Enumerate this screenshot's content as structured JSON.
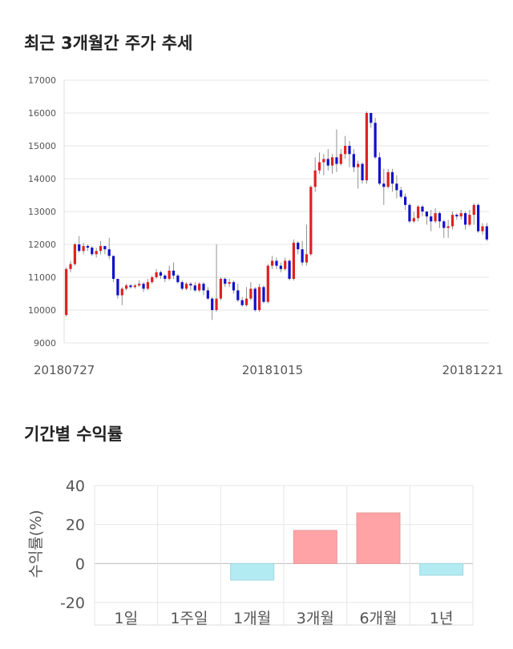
{
  "sections": {
    "price_title": "최근 3개월간 주가 추세",
    "returns_title": "기간별 수익률"
  },
  "colors": {
    "up": "#e02020",
    "down": "#1010cc",
    "positive_bar": "#ffa3a6",
    "negative_bar": "#b2ebf2",
    "grid": "#e6e6e6"
  },
  "chart_data": [
    {
      "type": "candlestick",
      "title": "최근 3개월간 주가 추세",
      "ylim": [
        9000,
        17000
      ],
      "y_ticks": [
        "9000",
        "10000",
        "11000",
        "12000",
        "13000",
        "14000",
        "15000",
        "16000",
        "17000"
      ],
      "x_labels": [
        "20180727",
        "20181015",
        "20181221"
      ],
      "grid": "horizontal",
      "series": [
        [
          9850,
          11250,
          11300,
          9800
        ],
        [
          11250,
          11400,
          11500,
          11150
        ],
        [
          11400,
          12000,
          12050,
          11350
        ],
        [
          12000,
          11800,
          12250,
          11750
        ],
        [
          11800,
          11950,
          12050,
          11700
        ],
        [
          11950,
          11900,
          12000,
          11800
        ],
        [
          11900,
          11700,
          11950,
          11650
        ],
        [
          11700,
          11800,
          11900,
          11600
        ],
        [
          11800,
          11950,
          12100,
          11700
        ],
        [
          11950,
          11850,
          11950,
          11700
        ],
        [
          11850,
          11650,
          12200,
          11550
        ],
        [
          11650,
          10950,
          11450,
          10850
        ],
        [
          10950,
          10450,
          10950,
          10350
        ],
        [
          10450,
          10650,
          10700,
          10150
        ],
        [
          10650,
          10750,
          10800,
          10600
        ],
        [
          10750,
          10700,
          10800,
          10650
        ],
        [
          10700,
          10750,
          10800,
          10650
        ],
        [
          10750,
          10800,
          10900,
          10700
        ],
        [
          10800,
          10650,
          10850,
          10550
        ],
        [
          10650,
          10850,
          10950,
          10600
        ],
        [
          10850,
          11000,
          11050,
          10800
        ],
        [
          11000,
          11150,
          11250,
          10950
        ],
        [
          11150,
          11050,
          11200,
          10950
        ],
        [
          11050,
          10950,
          11100,
          10850
        ],
        [
          10950,
          11200,
          11350,
          10900
        ],
        [
          11200,
          11050,
          11450,
          10950
        ],
        [
          11050,
          10850,
          11100,
          10800
        ],
        [
          10850,
          10650,
          10900,
          10600
        ],
        [
          10650,
          10800,
          10850,
          10600
        ],
        [
          10800,
          10750,
          10850,
          10600
        ],
        [
          10750,
          10600,
          10850,
          10550
        ],
        [
          10600,
          10800,
          10850,
          10550
        ],
        [
          10800,
          10600,
          10850,
          10450
        ],
        [
          10600,
          10350,
          10700,
          10300
        ],
        [
          10350,
          10000,
          10400,
          9700
        ],
        [
          10000,
          10350,
          12000,
          9950
        ],
        [
          10350,
          10950,
          11000,
          10300
        ],
        [
          10950,
          10800,
          11000,
          10700
        ],
        [
          10800,
          10850,
          10950,
          10700
        ],
        [
          10850,
          10600,
          10900,
          10500
        ],
        [
          10600,
          10300,
          10800,
          10250
        ],
        [
          10300,
          10150,
          10400,
          10100
        ],
        [
          10150,
          10350,
          10700,
          10100
        ],
        [
          10350,
          10650,
          10850,
          10300
        ],
        [
          10650,
          10000,
          10700,
          9950
        ],
        [
          10000,
          10700,
          10800,
          9950
        ],
        [
          10700,
          10250,
          10750,
          10200
        ],
        [
          10250,
          11350,
          11400,
          10200
        ],
        [
          11350,
          11500,
          11650,
          11250
        ],
        [
          11500,
          11350,
          11600,
          11250
        ],
        [
          11350,
          11250,
          11450,
          11150
        ],
        [
          11250,
          11500,
          11600,
          11200
        ],
        [
          11500,
          10950,
          11550,
          10900
        ],
        [
          10950,
          12050,
          12150,
          10900
        ],
        [
          12050,
          11850,
          12100,
          11700
        ],
        [
          11850,
          11450,
          12100,
          11350
        ],
        [
          11450,
          11700,
          12600,
          11350
        ],
        [
          11700,
          13750,
          13800,
          11650
        ],
        [
          13750,
          14250,
          14650,
          13600
        ],
        [
          14250,
          14500,
          14800,
          14150
        ],
        [
          14500,
          14600,
          14750,
          14100
        ],
        [
          14600,
          14400,
          14900,
          14250
        ],
        [
          14400,
          14650,
          14750,
          14150
        ],
        [
          14650,
          14450,
          15500,
          14200
        ],
        [
          14450,
          14750,
          14900,
          14400
        ],
        [
          14750,
          15000,
          15300,
          14600
        ],
        [
          15000,
          14750,
          15150,
          14350
        ],
        [
          14750,
          14350,
          14900,
          14200
        ],
        [
          14350,
          14450,
          14550,
          13700
        ],
        [
          14450,
          13950,
          14500,
          13850
        ],
        [
          13950,
          16000,
          16050,
          13850
        ],
        [
          16000,
          15700,
          16000,
          15550
        ],
        [
          15700,
          14650,
          15850,
          14600
        ],
        [
          14650,
          13850,
          14800,
          13800
        ],
        [
          13850,
          13750,
          14300,
          13200
        ],
        [
          13750,
          14200,
          14300,
          13700
        ],
        [
          14200,
          13850,
          14300,
          13600
        ],
        [
          13850,
          13650,
          14100,
          13400
        ],
        [
          13650,
          13450,
          13750,
          13400
        ],
        [
          13450,
          13200,
          13550,
          13050
        ],
        [
          13200,
          12700,
          13250,
          12650
        ],
        [
          12700,
          12800,
          13000,
          12650
        ],
        [
          12800,
          13150,
          13200,
          12700
        ],
        [
          13150,
          13000,
          13200,
          12850
        ],
        [
          13000,
          12850,
          13000,
          12600
        ],
        [
          12850,
          12700,
          13050,
          12400
        ],
        [
          12700,
          12950,
          13100,
          12650
        ],
        [
          12950,
          12700,
          13000,
          12500
        ],
        [
          12700,
          12500,
          12750,
          12200
        ],
        [
          12500,
          12550,
          12750,
          12200
        ],
        [
          12550,
          12900,
          13000,
          12450
        ],
        [
          12900,
          12850,
          12950,
          12750
        ],
        [
          12850,
          12950,
          13050,
          12750
        ],
        [
          12950,
          12600,
          13000,
          12450
        ],
        [
          12600,
          12900,
          13050,
          12550
        ],
        [
          12900,
          13200,
          13250,
          12600
        ],
        [
          13200,
          12400,
          13250,
          12350
        ],
        [
          12400,
          12550,
          12650,
          12300
        ],
        [
          12550,
          12150,
          12650,
          12100
        ]
      ]
    },
    {
      "type": "bar",
      "ylabel": "수익률(%)",
      "ylim": [
        -20,
        40
      ],
      "y_ticks": [
        "40",
        "20",
        "0",
        "-20"
      ],
      "categories": [
        "1일",
        "1주일",
        "1개월",
        "3개월",
        "6개월",
        "1년"
      ],
      "values": [
        0,
        0,
        -8.5,
        17,
        26,
        -6
      ]
    }
  ]
}
